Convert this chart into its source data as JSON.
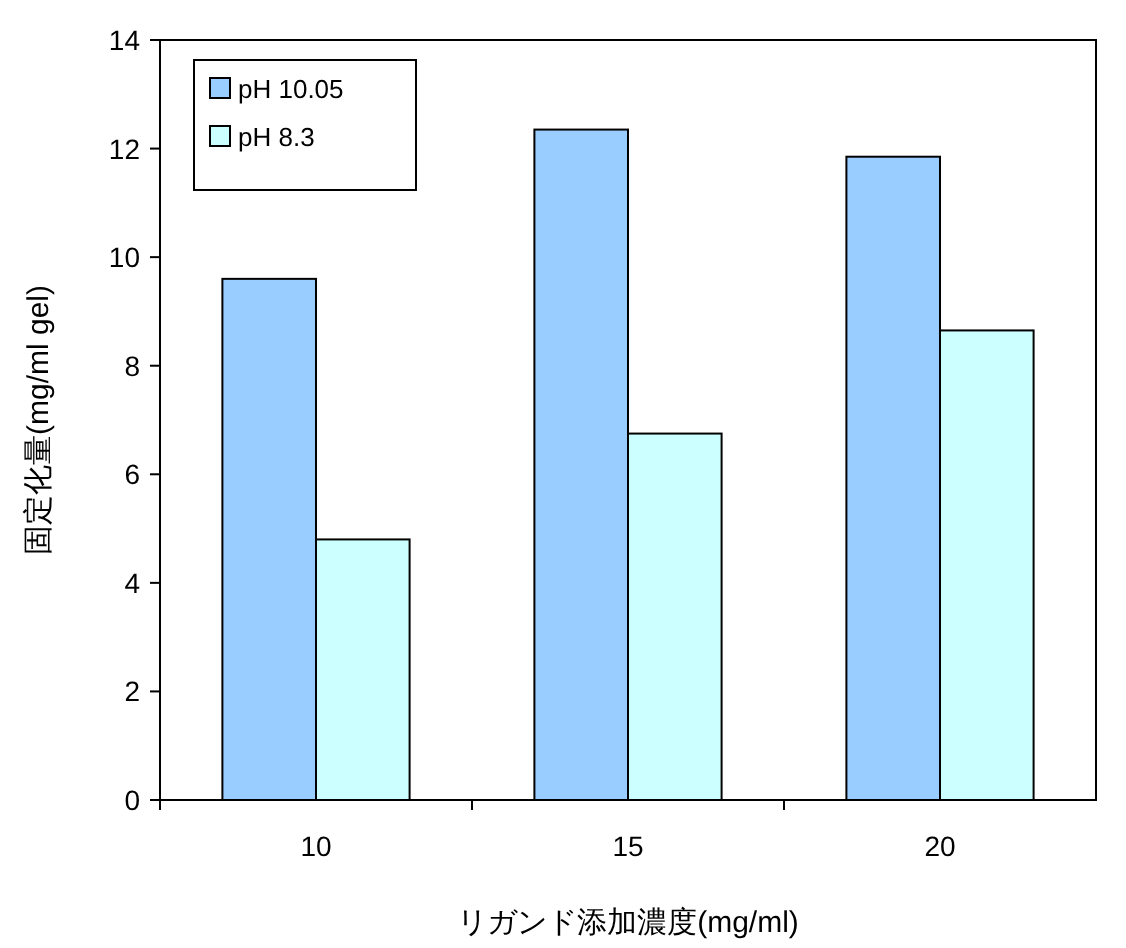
{
  "chart_data": {
    "type": "bar",
    "xlabel": "リガンド添加濃度(mg/ml)",
    "ylabel": "固定化量(mg/ml gel)",
    "categories": [
      "10",
      "15",
      "20"
    ],
    "series": [
      {
        "name": "pH 10.05",
        "color": "#99ccff",
        "values": [
          9.6,
          12.35,
          11.85
        ]
      },
      {
        "name": "pH 8.3",
        "color": "#ccffff",
        "values": [
          4.8,
          6.75,
          8.65
        ]
      }
    ],
    "ylim": [
      0,
      14
    ],
    "yticks": [
      0,
      2,
      4,
      6,
      8,
      10,
      12,
      14
    ],
    "grid": false,
    "legend": "top left"
  }
}
